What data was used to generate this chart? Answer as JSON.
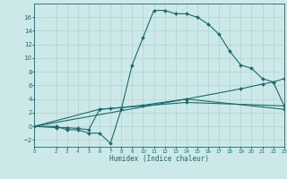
{
  "xlabel": "Humidex (Indice chaleur)",
  "background_color": "#cce8e8",
  "grid_color": "#aacece",
  "line_color": "#1a6b6b",
  "xlim": [
    0,
    23
  ],
  "ylim": [
    -3,
    18
  ],
  "xticks": [
    0,
    2,
    3,
    4,
    5,
    6,
    7,
    8,
    9,
    10,
    11,
    12,
    13,
    14,
    15,
    16,
    17,
    18,
    19,
    20,
    21,
    22,
    23
  ],
  "yticks": [
    -2,
    0,
    2,
    4,
    6,
    8,
    10,
    12,
    14,
    16
  ],
  "line1_x": [
    0,
    2,
    3,
    4,
    5,
    6,
    7,
    8,
    9,
    10,
    11,
    12,
    13,
    14,
    15,
    16,
    17,
    18,
    19,
    20,
    21,
    22,
    23
  ],
  "line1_y": [
    0,
    0,
    -0.5,
    -0.5,
    -1,
    -1,
    -2.5,
    2.5,
    9,
    13,
    17,
    17,
    16.5,
    16.5,
    16,
    15,
    13.5,
    11,
    9,
    8.5,
    7,
    6.5,
    3
  ],
  "line2_x": [
    0,
    2,
    3,
    4,
    5,
    6,
    7,
    10,
    14,
    19,
    21,
    22,
    23
  ],
  "line2_y": [
    0,
    -0.2,
    -0.2,
    -0.3,
    -0.5,
    2.5,
    2.6,
    3.1,
    4.0,
    5.5,
    6.2,
    6.5,
    7.0
  ],
  "line3_x": [
    0,
    6,
    14,
    23
  ],
  "line3_y": [
    0,
    2.5,
    3.5,
    3.0
  ],
  "line4_x": [
    0,
    14,
    23
  ],
  "line4_y": [
    0,
    4.0,
    2.5
  ]
}
